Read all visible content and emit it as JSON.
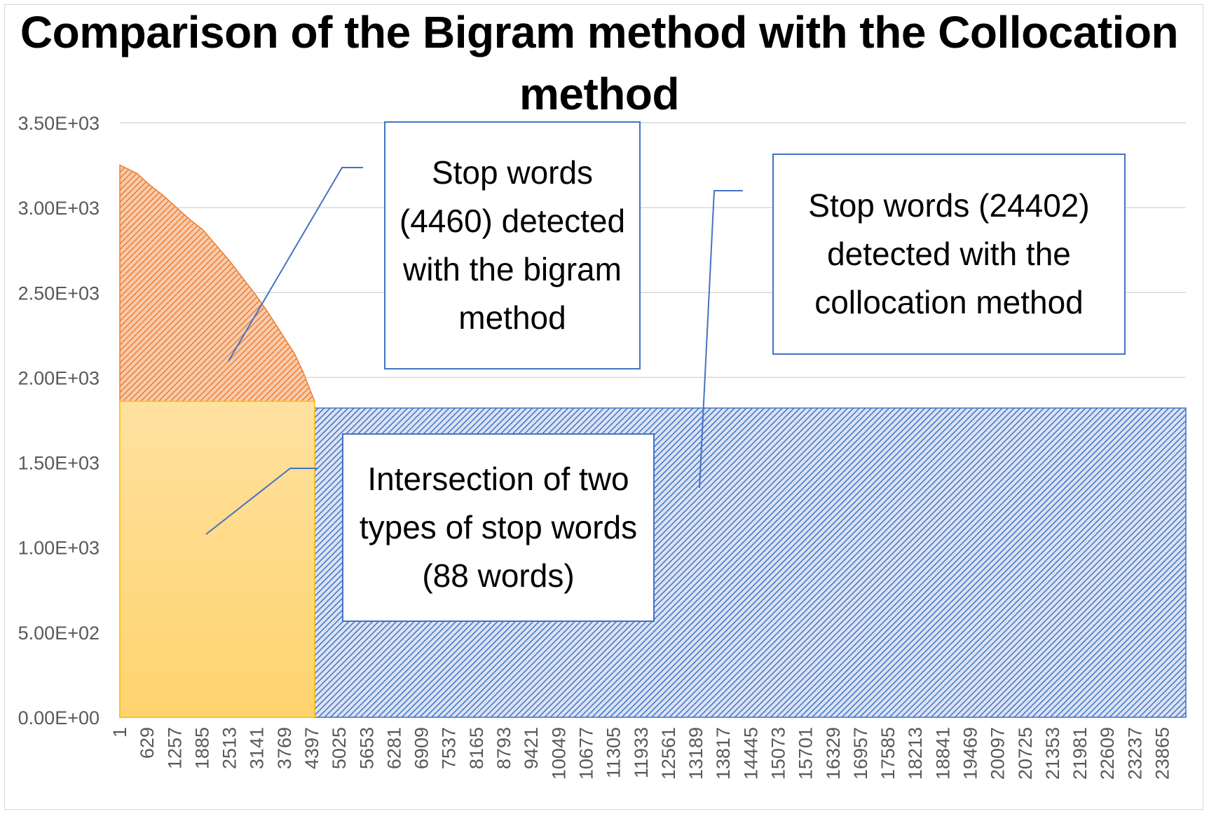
{
  "chart_data": {
    "type": "area",
    "title": "Comparison of the Bigram method with the Collocation method",
    "xlabel": "",
    "ylabel": "",
    "ylim": [
      0,
      3500
    ],
    "xlim": [
      1,
      24402
    ],
    "grid": true,
    "legend": "none",
    "y_ticks": [
      "0.00E+00",
      "5.00E+02",
      "1.00E+03",
      "1.50E+03",
      "2.00E+03",
      "2.50E+03",
      "3.00E+03",
      "3.50E+03"
    ],
    "y_tick_values": [
      0,
      500,
      1000,
      1500,
      2000,
      2500,
      3000,
      3500
    ],
    "x_ticks": [
      "1",
      "629",
      "1257",
      "1885",
      "2513",
      "3141",
      "3769",
      "4397",
      "5025",
      "5653",
      "6281",
      "6909",
      "7537",
      "8165",
      "8793",
      "9421",
      "10049",
      "10677",
      "11305",
      "11933",
      "12561",
      "13189",
      "13817",
      "14445",
      "15073",
      "15701",
      "16329",
      "16957",
      "17585",
      "18213",
      "18841",
      "19469",
      "20097",
      "20725",
      "21353",
      "21981",
      "22609",
      "23237",
      "23865"
    ],
    "series": [
      {
        "x": [
          1,
          400,
          700,
          1000,
          1300,
          1600,
          1900,
          2200,
          2500,
          2800,
          3100,
          3400,
          3700,
          4000,
          4200,
          4350,
          4460
        ],
        "values": [
          3250,
          3200,
          3130,
          3070,
          3000,
          2930,
          2870,
          2780,
          2690,
          2590,
          2490,
          2380,
          2260,
          2140,
          2030,
          1930,
          1860
        ],
        "color": "#ed7d31",
        "pattern": "hatched"
      },
      {
        "x": [
          4460,
          24402
        ],
        "values": [
          1820,
          1820
        ],
        "color": "#4472c4",
        "pattern": "hatched"
      },
      {
        "x": [
          1,
          4460
        ],
        "values": [
          1860,
          1860
        ],
        "color": "#ffd966",
        "pattern": "gradient"
      }
    ],
    "annotations": [
      "Stop words (4460) detected with the bigram method",
      "Stop words (24402) detected with the collocation method",
      "Intersection of two types of stop words (88 words)"
    ]
  }
}
